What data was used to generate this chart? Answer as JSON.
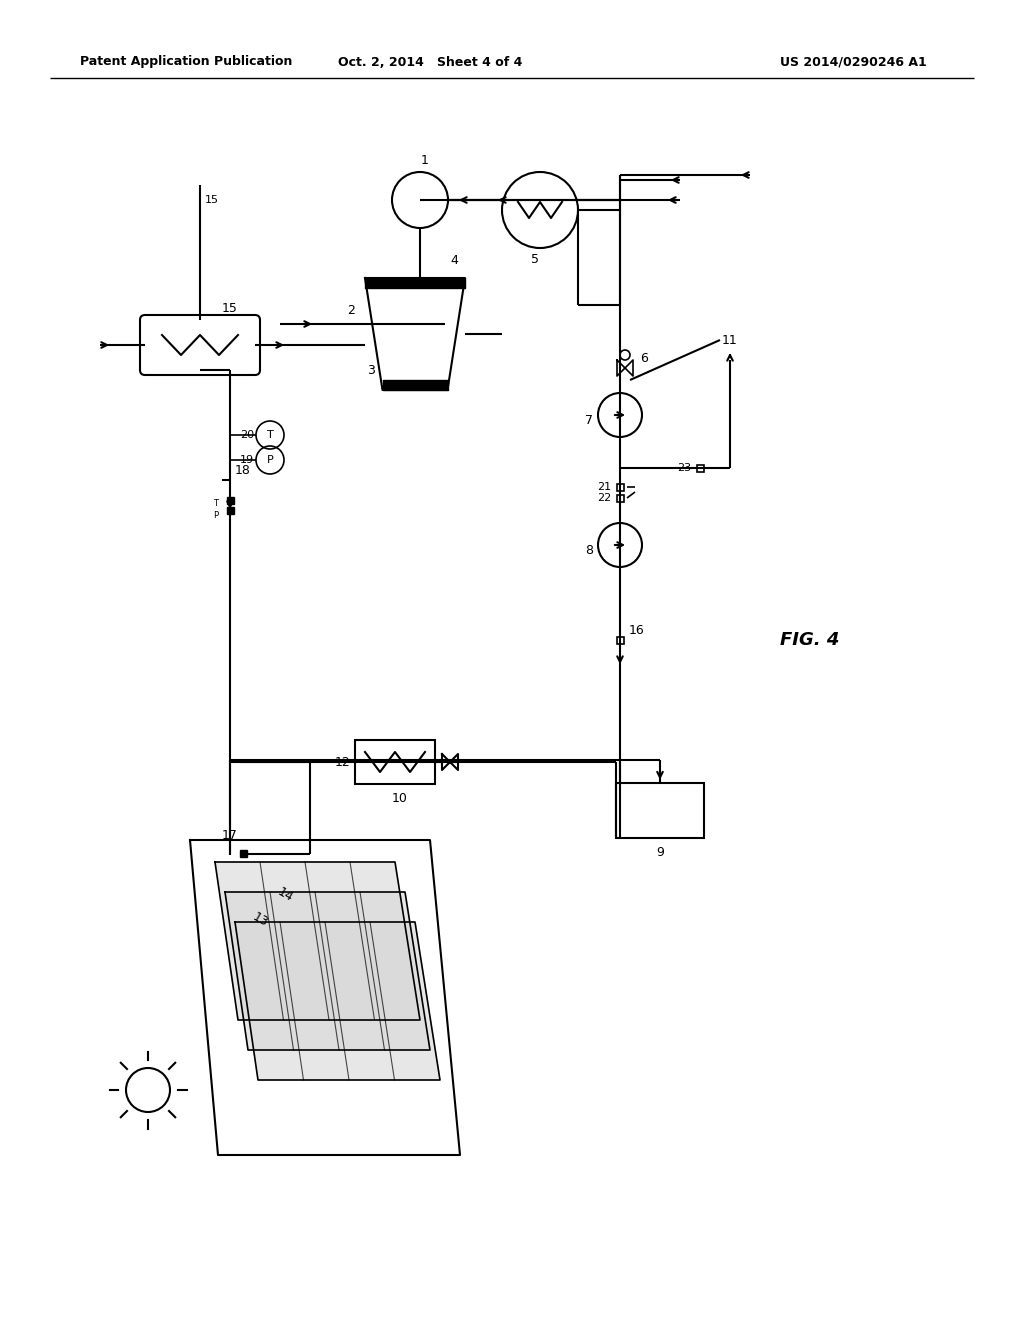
{
  "title_left": "Patent Application Publication",
  "title_center": "Oct. 2, 2014   Sheet 4 of 4",
  "title_right": "US 2014/0290246 A1",
  "fig_label": "FIG. 4",
  "background": "#ffffff",
  "line_color": "#000000",
  "fig_width": 10.24,
  "fig_height": 13.2
}
